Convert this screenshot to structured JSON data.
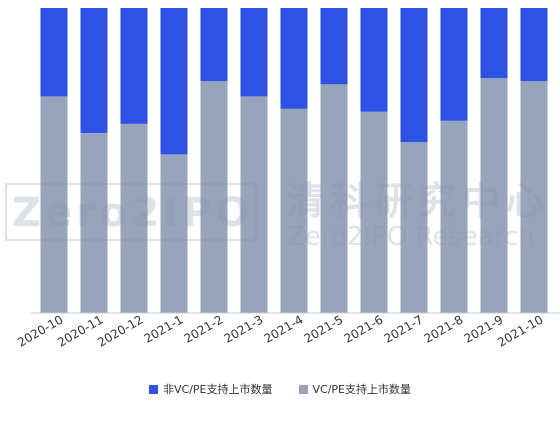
{
  "chart_data": {
    "type": "bar",
    "stacked": true,
    "normalized": true,
    "categories": [
      "2020-10",
      "2020-11",
      "2020-12",
      "2021-1",
      "2021-2",
      "2021-3",
      "2021-4",
      "2021-5",
      "2021-6",
      "2021-7",
      "2021-8",
      "2021-9",
      "2021-10"
    ],
    "series": [
      {
        "name": "VC/PE支持上市数量",
        "color": "#97a4b9",
        "values": [
          0.71,
          0.59,
          0.62,
          0.52,
          0.76,
          0.71,
          0.67,
          0.75,
          0.66,
          0.56,
          0.63,
          0.77,
          0.76
        ]
      },
      {
        "name": "非VC/PE支持上市数量",
        "color": "#2f52e6",
        "values": [
          0.29,
          0.41,
          0.38,
          0.48,
          0.24,
          0.29,
          0.33,
          0.25,
          0.34,
          0.44,
          0.37,
          0.23,
          0.24
        ]
      }
    ],
    "ylim": [
      0,
      1
    ],
    "grid": false,
    "legend_position": "bottom"
  },
  "legend": [
    {
      "label": "非VC/PE支持上市数量",
      "color": "#2f52e6"
    },
    {
      "label": "VC/PE支持上市数量",
      "color": "#97a4b9"
    }
  ],
  "watermark": {
    "logo_text": "Zero2IPO",
    "title_cn": "清科研究中心",
    "title_en": "Zero2IPO Research"
  }
}
